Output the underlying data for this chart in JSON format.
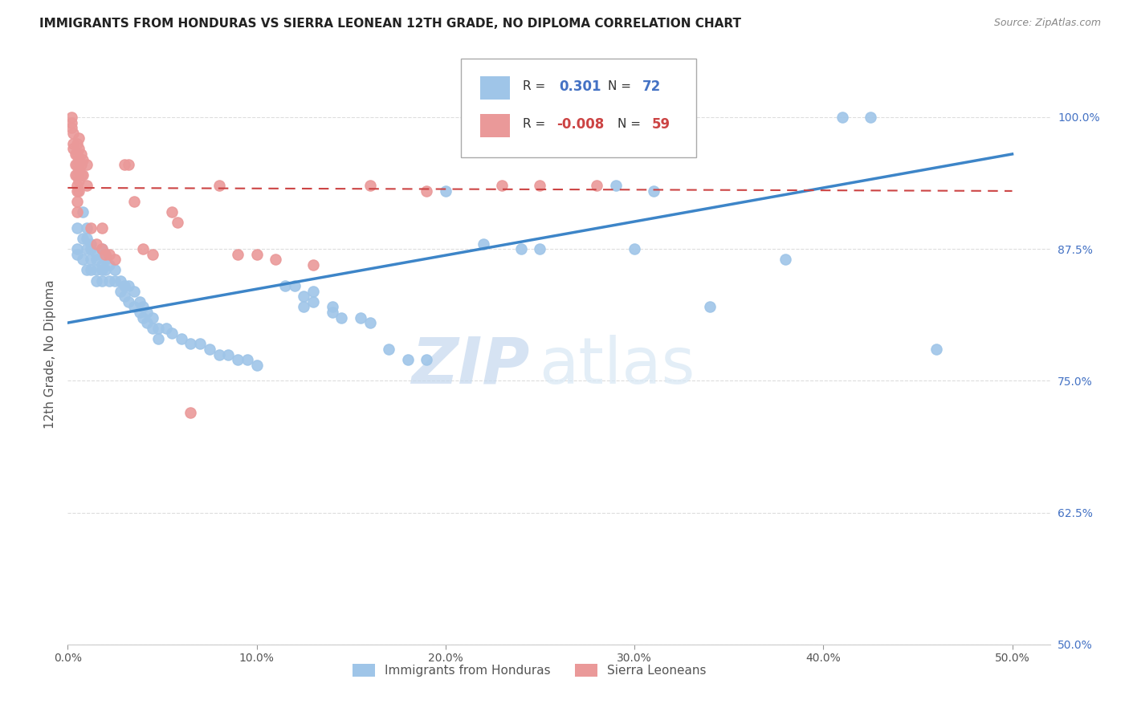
{
  "title": "IMMIGRANTS FROM HONDURAS VS SIERRA LEONEAN 12TH GRADE, NO DIPLOMA CORRELATION CHART",
  "source": "Source: ZipAtlas.com",
  "ylabel": "12th Grade, No Diploma",
  "ytick_labels": [
    "100.0%",
    "87.5%",
    "75.0%",
    "62.5%",
    "50.0%"
  ],
  "ytick_values": [
    1.0,
    0.875,
    0.75,
    0.625,
    0.5
  ],
  "xtick_vals": [
    0.0,
    0.1,
    0.2,
    0.3,
    0.4,
    0.5
  ],
  "xtick_labels": [
    "0.0%",
    "10.0%",
    "20.0%",
    "30.0%",
    "40.0%",
    "50.0%"
  ],
  "xlim": [
    0.0,
    0.52
  ],
  "ylim": [
    0.5,
    1.05
  ],
  "color_blue": "#9fc5e8",
  "color_pink": "#ea9999",
  "color_line_blue": "#3d85c8",
  "color_line_pink": "#cc4444",
  "watermark_zip": "ZIP",
  "watermark_atlas": "atlas",
  "legend_label_blue": "Immigrants from Honduras",
  "legend_label_pink": "Sierra Leoneans",
  "blue_line_x": [
    0.0,
    0.5
  ],
  "blue_line_y": [
    0.805,
    0.965
  ],
  "pink_line_x": [
    0.0,
    0.5
  ],
  "pink_line_y": [
    0.933,
    0.93
  ],
  "blue_points": [
    [
      0.005,
      0.895
    ],
    [
      0.005,
      0.875
    ],
    [
      0.005,
      0.87
    ],
    [
      0.008,
      0.91
    ],
    [
      0.008,
      0.885
    ],
    [
      0.008,
      0.865
    ],
    [
      0.01,
      0.895
    ],
    [
      0.01,
      0.885
    ],
    [
      0.01,
      0.875
    ],
    [
      0.01,
      0.855
    ],
    [
      0.012,
      0.88
    ],
    [
      0.012,
      0.875
    ],
    [
      0.012,
      0.865
    ],
    [
      0.012,
      0.855
    ],
    [
      0.015,
      0.87
    ],
    [
      0.015,
      0.865
    ],
    [
      0.015,
      0.855
    ],
    [
      0.015,
      0.845
    ],
    [
      0.018,
      0.875
    ],
    [
      0.018,
      0.86
    ],
    [
      0.018,
      0.855
    ],
    [
      0.018,
      0.845
    ],
    [
      0.02,
      0.87
    ],
    [
      0.02,
      0.865
    ],
    [
      0.02,
      0.855
    ],
    [
      0.022,
      0.86
    ],
    [
      0.022,
      0.845
    ],
    [
      0.025,
      0.855
    ],
    [
      0.025,
      0.845
    ],
    [
      0.028,
      0.845
    ],
    [
      0.028,
      0.835
    ],
    [
      0.03,
      0.84
    ],
    [
      0.03,
      0.83
    ],
    [
      0.032,
      0.84
    ],
    [
      0.032,
      0.825
    ],
    [
      0.035,
      0.835
    ],
    [
      0.035,
      0.82
    ],
    [
      0.038,
      0.825
    ],
    [
      0.038,
      0.815
    ],
    [
      0.04,
      0.82
    ],
    [
      0.04,
      0.81
    ],
    [
      0.042,
      0.815
    ],
    [
      0.042,
      0.805
    ],
    [
      0.045,
      0.81
    ],
    [
      0.045,
      0.8
    ],
    [
      0.048,
      0.8
    ],
    [
      0.048,
      0.79
    ],
    [
      0.052,
      0.8
    ],
    [
      0.055,
      0.795
    ],
    [
      0.06,
      0.79
    ],
    [
      0.065,
      0.785
    ],
    [
      0.07,
      0.785
    ],
    [
      0.075,
      0.78
    ],
    [
      0.08,
      0.775
    ],
    [
      0.085,
      0.775
    ],
    [
      0.09,
      0.77
    ],
    [
      0.095,
      0.77
    ],
    [
      0.1,
      0.765
    ],
    [
      0.115,
      0.84
    ],
    [
      0.12,
      0.84
    ],
    [
      0.125,
      0.83
    ],
    [
      0.125,
      0.82
    ],
    [
      0.13,
      0.835
    ],
    [
      0.13,
      0.825
    ],
    [
      0.14,
      0.82
    ],
    [
      0.14,
      0.815
    ],
    [
      0.145,
      0.81
    ],
    [
      0.155,
      0.81
    ],
    [
      0.16,
      0.805
    ],
    [
      0.17,
      0.78
    ],
    [
      0.18,
      0.77
    ],
    [
      0.19,
      0.77
    ],
    [
      0.2,
      0.93
    ],
    [
      0.22,
      0.88
    ],
    [
      0.24,
      0.875
    ],
    [
      0.25,
      0.875
    ],
    [
      0.29,
      0.935
    ],
    [
      0.3,
      0.875
    ],
    [
      0.31,
      0.93
    ],
    [
      0.34,
      0.82
    ],
    [
      0.38,
      0.865
    ],
    [
      0.41,
      1.0
    ],
    [
      0.425,
      1.0
    ],
    [
      0.46,
      0.78
    ]
  ],
  "pink_points": [
    [
      0.002,
      1.0
    ],
    [
      0.002,
      0.995
    ],
    [
      0.002,
      0.99
    ],
    [
      0.003,
      0.985
    ],
    [
      0.003,
      0.975
    ],
    [
      0.003,
      0.97
    ],
    [
      0.004,
      0.965
    ],
    [
      0.004,
      0.955
    ],
    [
      0.004,
      0.945
    ],
    [
      0.005,
      0.975
    ],
    [
      0.005,
      0.965
    ],
    [
      0.005,
      0.955
    ],
    [
      0.005,
      0.945
    ],
    [
      0.005,
      0.935
    ],
    [
      0.005,
      0.93
    ],
    [
      0.005,
      0.92
    ],
    [
      0.005,
      0.91
    ],
    [
      0.006,
      0.98
    ],
    [
      0.006,
      0.97
    ],
    [
      0.006,
      0.96
    ],
    [
      0.006,
      0.95
    ],
    [
      0.006,
      0.94
    ],
    [
      0.006,
      0.93
    ],
    [
      0.007,
      0.965
    ],
    [
      0.007,
      0.955
    ],
    [
      0.007,
      0.945
    ],
    [
      0.008,
      0.96
    ],
    [
      0.008,
      0.945
    ],
    [
      0.01,
      0.955
    ],
    [
      0.01,
      0.935
    ],
    [
      0.012,
      0.895
    ],
    [
      0.015,
      0.88
    ],
    [
      0.018,
      0.895
    ],
    [
      0.018,
      0.875
    ],
    [
      0.02,
      0.87
    ],
    [
      0.022,
      0.87
    ],
    [
      0.025,
      0.865
    ],
    [
      0.03,
      0.955
    ],
    [
      0.032,
      0.955
    ],
    [
      0.035,
      0.92
    ],
    [
      0.04,
      0.875
    ],
    [
      0.045,
      0.87
    ],
    [
      0.055,
      0.91
    ],
    [
      0.058,
      0.9
    ],
    [
      0.065,
      0.72
    ],
    [
      0.08,
      0.935
    ],
    [
      0.09,
      0.87
    ],
    [
      0.1,
      0.87
    ],
    [
      0.11,
      0.865
    ],
    [
      0.13,
      0.86
    ],
    [
      0.16,
      0.935
    ],
    [
      0.19,
      0.93
    ],
    [
      0.23,
      0.935
    ],
    [
      0.25,
      0.935
    ],
    [
      0.28,
      0.935
    ]
  ]
}
